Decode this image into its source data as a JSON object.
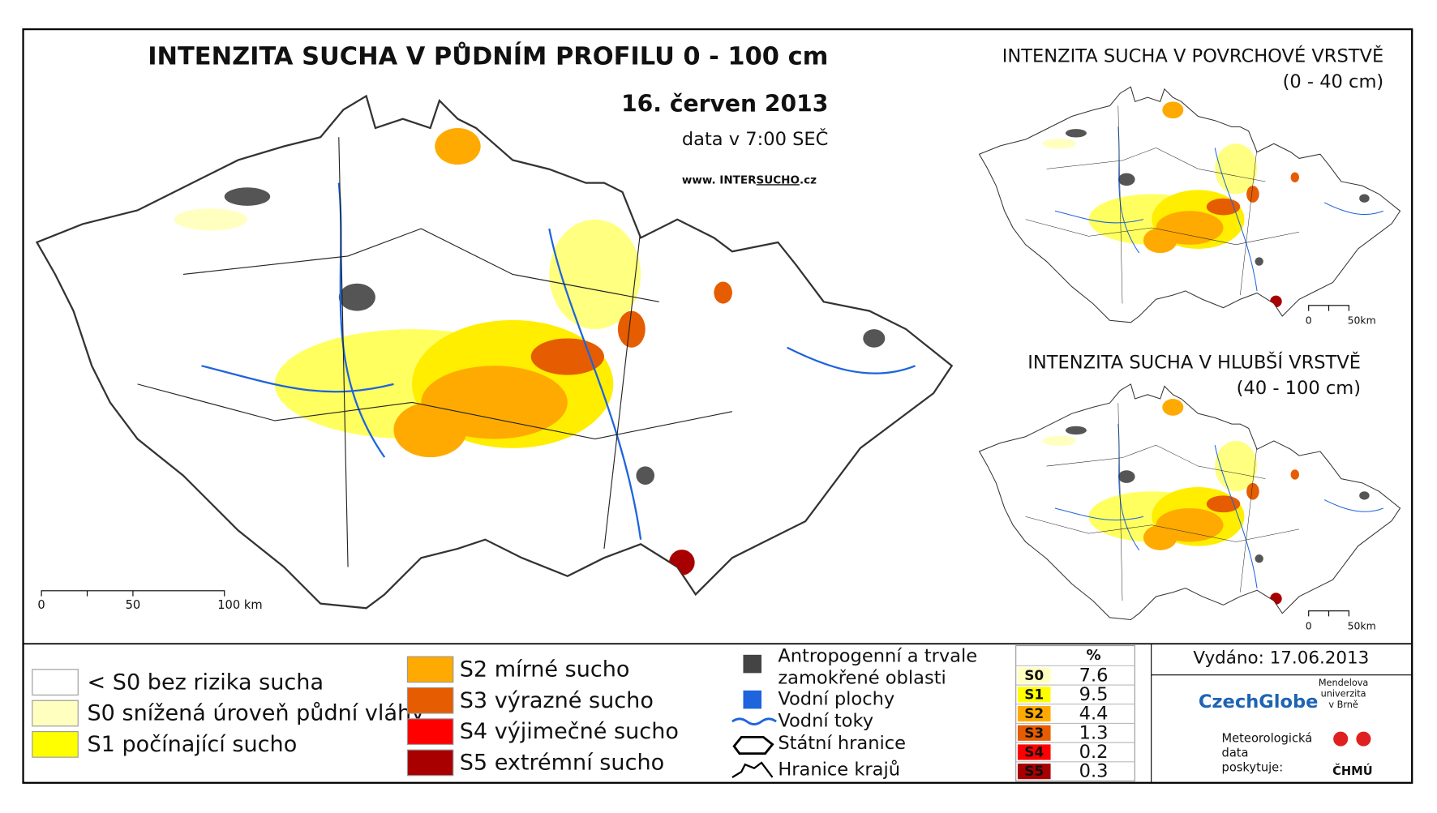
{
  "main_map": {
    "title": "INTENZITA SUCHA V PŮDNÍM PROFILU 0 - 100 cm",
    "date": "16. červen 2013",
    "time": "data v 7:00 SEČ",
    "url": [
      "www. INTER",
      "SUCHO",
      ".cz"
    ],
    "scale": [
      "0",
      "50",
      "100 km"
    ]
  },
  "surface_map": {
    "title": "INTENZITA SUCHA V POVRCHOVÉ VRSTVĚ",
    "subtitle": "(0 - 40 cm)",
    "scale": [
      "0",
      "50km"
    ]
  },
  "deep_map": {
    "title": "INTENZITA SUCHA V HLUBŠÍ VRSTVĚ",
    "subtitle": "(40 - 100 cm)",
    "scale": [
      "0",
      "50km"
    ]
  },
  "legend": {
    "classes": [
      {
        "label": "< S0 bez rizika sucha",
        "color": "#ffffff"
      },
      {
        "label": "S0 snížená úroveň půdní vláhy",
        "color": "#ffffc0"
      },
      {
        "label": "S1 počínající sucho",
        "color": "#ffff00"
      },
      {
        "label": "S2 mírné sucho",
        "color": "#ffaa00"
      },
      {
        "label": "S3 výrazné sucho",
        "color": "#e65c00"
      },
      {
        "label": "S4 výjimečné sucho",
        "color": "#ff0000"
      },
      {
        "label": "S5 extrémní sucho",
        "color": "#a80000"
      }
    ],
    "layers": [
      [
        "Antropogenní a trvale",
        "zamokřené oblasti"
      ],
      [
        "Vodní plochy"
      ],
      [
        "Vodní toky"
      ],
      [
        "Státní hranice"
      ],
      [
        "Hranice krajů"
      ]
    ]
  },
  "table": {
    "header": "%",
    "rows": [
      {
        "class": "S0",
        "color": "#ffffc0",
        "percent": 7.6
      },
      {
        "class": "S1",
        "color": "#ffff00",
        "percent": 9.5
      },
      {
        "class": "S2",
        "color": "#ffaa00",
        "percent": 4.4
      },
      {
        "class": "S3",
        "color": "#e65c00",
        "percent": 1.3
      },
      {
        "class": "S4",
        "color": "#ff0000",
        "percent": 0.2
      },
      {
        "class": "S5",
        "color": "#a80000",
        "percent": 0.3
      }
    ]
  },
  "issued": "Vydáno: 17.06.2013",
  "logos": {
    "czechglobe": "CzechGlobe",
    "mendel": [
      "Mendelova",
      "univerzita",
      "v Brně"
    ],
    "data_note": [
      "Meteorologická",
      "data",
      "poskytuje:"
    ],
    "chmu": "ČHMÚ"
  }
}
